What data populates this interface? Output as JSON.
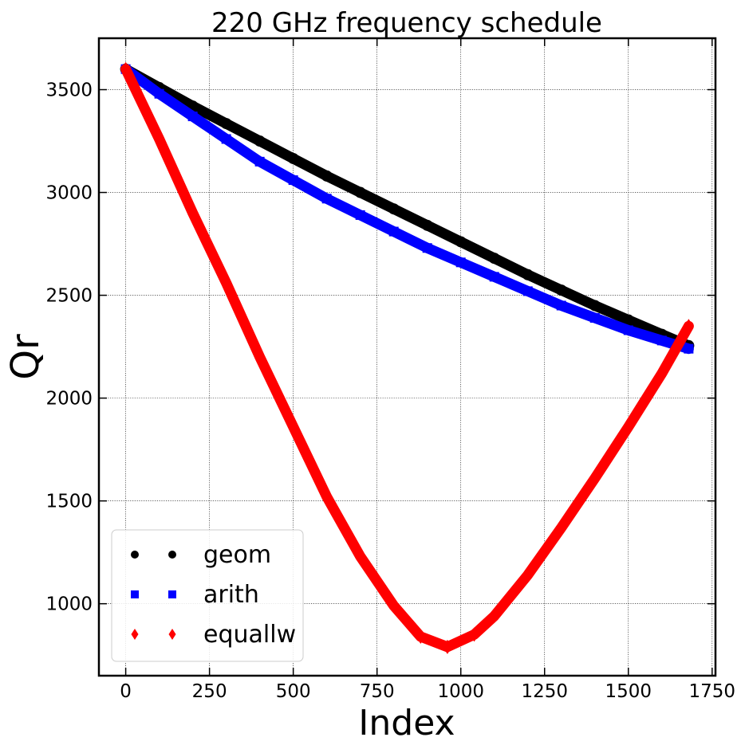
{
  "chart_data": {
    "type": "scatter",
    "title": "220 GHz frequency schedule",
    "xlabel": "Index",
    "ylabel": "Qr",
    "xlim": [
      -80,
      1760
    ],
    "ylim": [
      650,
      3750
    ],
    "xticks": [
      0,
      250,
      500,
      750,
      1000,
      1250,
      1500,
      1750
    ],
    "yticks": [
      1000,
      1500,
      2000,
      2500,
      3000,
      3500
    ],
    "grid": true,
    "legend_position": "lower left",
    "series": [
      {
        "name": "geom",
        "marker": "circle",
        "color": "#000000",
        "points": [
          [
            0,
            3600
          ],
          [
            100,
            3510
          ],
          [
            200,
            3420
          ],
          [
            300,
            3335
          ],
          [
            400,
            3250
          ],
          [
            500,
            3165
          ],
          [
            600,
            3080
          ],
          [
            700,
            3000
          ],
          [
            800,
            2920
          ],
          [
            900,
            2840
          ],
          [
            1000,
            2760
          ],
          [
            1100,
            2680
          ],
          [
            1200,
            2600
          ],
          [
            1300,
            2525
          ],
          [
            1400,
            2450
          ],
          [
            1500,
            2380
          ],
          [
            1600,
            2310
          ],
          [
            1680,
            2255
          ]
        ]
      },
      {
        "name": "arith",
        "marker": "square",
        "color": "#0000ff",
        "points": [
          [
            0,
            3600
          ],
          [
            100,
            3480
          ],
          [
            200,
            3370
          ],
          [
            300,
            3260
          ],
          [
            400,
            3150
          ],
          [
            500,
            3060
          ],
          [
            600,
            2970
          ],
          [
            700,
            2890
          ],
          [
            800,
            2810
          ],
          [
            900,
            2730
          ],
          [
            1000,
            2660
          ],
          [
            1100,
            2590
          ],
          [
            1200,
            2520
          ],
          [
            1300,
            2450
          ],
          [
            1400,
            2390
          ],
          [
            1500,
            2330
          ],
          [
            1600,
            2280
          ],
          [
            1680,
            2240
          ]
        ]
      },
      {
        "name": "equallw",
        "marker": "diamond",
        "color": "#ff0000",
        "points": [
          [
            0,
            3600
          ],
          [
            100,
            3260
          ],
          [
            200,
            2900
          ],
          [
            300,
            2560
          ],
          [
            400,
            2200
          ],
          [
            500,
            1860
          ],
          [
            600,
            1520
          ],
          [
            700,
            1230
          ],
          [
            800,
            990
          ],
          [
            880,
            840
          ],
          [
            960,
            790
          ],
          [
            1040,
            850
          ],
          [
            1100,
            940
          ],
          [
            1200,
            1140
          ],
          [
            1300,
            1370
          ],
          [
            1400,
            1610
          ],
          [
            1500,
            1860
          ],
          [
            1600,
            2120
          ],
          [
            1680,
            2350
          ]
        ]
      }
    ]
  }
}
